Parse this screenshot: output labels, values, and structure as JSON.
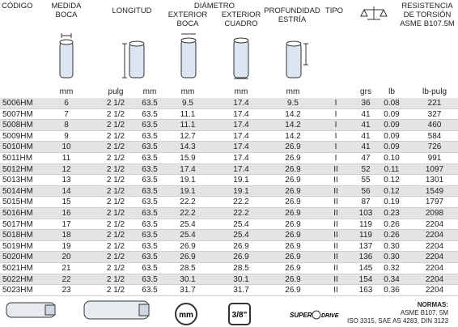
{
  "header": {
    "code": "CÓDIGO",
    "size": "MEDIDA BOCA",
    "length": "LONGITUD",
    "diameter": "DIÁMETRO",
    "outer_mouth": "EXTERIOR BOCA",
    "outer_square": "EXTERIOR CUADRO",
    "depth": "PROFUNDIDAD ESTRÍA",
    "type": "TIPO",
    "torsion": "RESISTENCIA DE TORSIÓN ASME B107.5M"
  },
  "units": [
    "mm",
    "pulg",
    "mm",
    "mm",
    "mm",
    "mm",
    "grs",
    "lb",
    "lb-pulg"
  ],
  "table": {
    "rows": [
      [
        "5006HM",
        "6",
        "2 1/2",
        "63.5",
        "9.5",
        "17.4",
        "9.5",
        "I",
        "36",
        "0.08",
        "221"
      ],
      [
        "5007HM",
        "7",
        "2 1/2",
        "63.5",
        "11.1",
        "17.4",
        "14.2",
        "I",
        "41",
        "0.09",
        "327"
      ],
      [
        "5008HM",
        "8",
        "2 1/2",
        "63.5",
        "11.1",
        "17.4",
        "14.2",
        "I",
        "41",
        "0.09",
        "460"
      ],
      [
        "5009HM",
        "9",
        "2 1/2",
        "63.5",
        "12.7",
        "17.4",
        "14.2",
        "I",
        "41",
        "0.09",
        "584"
      ],
      [
        "5010HM",
        "10",
        "2 1/2",
        "63.5",
        "14.3",
        "17.4",
        "26.9",
        "I",
        "41",
        "0.09",
        "726"
      ],
      [
        "5011HM",
        "11",
        "2 1/2",
        "63.5",
        "15.9",
        "17.4",
        "26.9",
        "I",
        "47",
        "0.10",
        "991"
      ],
      [
        "5012HM",
        "12",
        "2 1/2",
        "63.5",
        "17.4",
        "17.4",
        "26.9",
        "II",
        "52",
        "0.11",
        "1097"
      ],
      [
        "5013HM",
        "13",
        "2 1/2",
        "63.5",
        "19.1",
        "19.1",
        "26.9",
        "II",
        "55",
        "0.12",
        "1301"
      ],
      [
        "5014HM",
        "14",
        "2 1/2",
        "63.5",
        "19.1",
        "19.1",
        "26.9",
        "II",
        "56",
        "0.12",
        "1549"
      ],
      [
        "5015HM",
        "15",
        "2 1/2",
        "63.5",
        "22.2",
        "22.2",
        "26.9",
        "II",
        "87",
        "0.19",
        "1797"
      ],
      [
        "5016HM",
        "16",
        "2 1/2",
        "63.5",
        "22.2",
        "22.2",
        "26.9",
        "II",
        "103",
        "0.23",
        "2098"
      ],
      [
        "5017HM",
        "17",
        "2 1/2",
        "63.5",
        "25.4",
        "25.4",
        "26.9",
        "II",
        "119",
        "0.26",
        "2204"
      ],
      [
        "5018HM",
        "18",
        "2 1/2",
        "63.5",
        "25.4",
        "25.4",
        "26.9",
        "II",
        "119",
        "0.26",
        "2204"
      ],
      [
        "5019HM",
        "19",
        "2 1/2",
        "63.5",
        "26.9",
        "26.9",
        "26.9",
        "II",
        "137",
        "0.30",
        "2204"
      ],
      [
        "5020HM",
        "20",
        "2 1/2",
        "63.5",
        "26.9",
        "26.9",
        "26.9",
        "II",
        "136",
        "0.30",
        "2204"
      ],
      [
        "5021HM",
        "21",
        "2 1/2",
        "63.5",
        "28.5",
        "28.5",
        "26.9",
        "II",
        "145",
        "0.32",
        "2204"
      ],
      [
        "5022HM",
        "22",
        "2 1/2",
        "63.5",
        "30.1",
        "30.1",
        "26.9",
        "II",
        "154",
        "0.34",
        "2204"
      ],
      [
        "5023HM",
        "23",
        "2 1/2",
        "63.5",
        "31.7",
        "31.7",
        "26.9",
        "II",
        "163",
        "0.36",
        "2204"
      ]
    ]
  },
  "footer": {
    "badge_mm": "mm",
    "badge_drive": "3/8\"",
    "logo_super": "SUPER",
    "logo_drive": "DRIVE",
    "norms_title": "NORMAS:",
    "norms_asme": "ASME B107. 5M",
    "norms_list": "ISO 3315, SAE AS 4283, DIN 3123"
  }
}
